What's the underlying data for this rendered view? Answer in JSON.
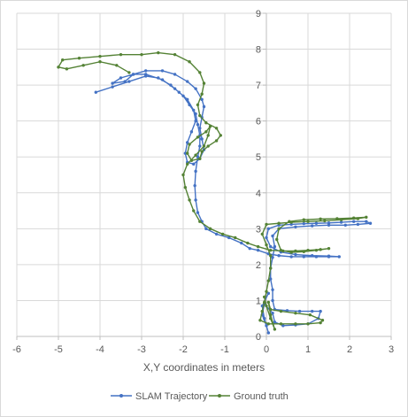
{
  "chart_data": {
    "type": "scatter",
    "title": "",
    "xlabel": "X,Y coordinates in meters",
    "ylabel": "",
    "xlim": [
      -6,
      3
    ],
    "ylim": [
      0,
      9
    ],
    "x_ticks": [
      -6,
      -5,
      -4,
      -3,
      -2,
      -1,
      0,
      1,
      2,
      3
    ],
    "y_ticks": [
      0,
      1,
      2,
      3,
      4,
      5,
      6,
      7,
      8,
      9
    ],
    "grid": true,
    "legend_position": "bottom",
    "series": [
      {
        "name": "SLAM Trajectory",
        "color": "#4472c4",
        "points": [
          [
            -4.1,
            6.8
          ],
          [
            -3.7,
            6.95
          ],
          [
            -3.3,
            7.1
          ],
          [
            -2.9,
            7.25
          ],
          [
            -2.6,
            7.2
          ],
          [
            -2.3,
            7.0
          ],
          [
            -2.1,
            6.8
          ],
          [
            -1.9,
            6.6
          ],
          [
            -1.75,
            6.3
          ],
          [
            -1.7,
            6.0
          ],
          [
            -1.8,
            5.7
          ],
          [
            -1.9,
            5.4
          ],
          [
            -1.95,
            5.1
          ],
          [
            -1.9,
            4.85
          ],
          [
            -1.75,
            4.8
          ],
          [
            -1.6,
            4.95
          ],
          [
            -1.5,
            5.2
          ],
          [
            -1.55,
            5.5
          ],
          [
            -1.6,
            5.8
          ],
          [
            -1.55,
            6.1
          ],
          [
            -1.5,
            6.4
          ],
          [
            -1.55,
            6.6
          ],
          [
            -1.7,
            6.9
          ],
          [
            -1.9,
            7.1
          ],
          [
            -2.2,
            7.3
          ],
          [
            -2.5,
            7.4
          ],
          [
            -2.9,
            7.4
          ],
          [
            -3.2,
            7.3
          ],
          [
            -3.4,
            7.1
          ],
          [
            -3.7,
            7.05
          ],
          [
            -3.5,
            7.2
          ],
          [
            -3.2,
            7.3
          ],
          [
            -2.9,
            7.3
          ],
          [
            -2.5,
            7.15
          ],
          [
            -2.2,
            6.9
          ],
          [
            -2.0,
            6.7
          ],
          [
            -1.85,
            6.45
          ],
          [
            -1.7,
            6.2
          ],
          [
            -1.65,
            5.9
          ],
          [
            -1.6,
            5.6
          ],
          [
            -1.6,
            5.3
          ],
          [
            -1.65,
            5.0
          ],
          [
            -1.7,
            4.6
          ],
          [
            -1.72,
            4.2
          ],
          [
            -1.7,
            3.8
          ],
          [
            -1.65,
            3.45
          ],
          [
            -1.55,
            3.2
          ],
          [
            -1.45,
            3.0
          ],
          [
            -1.2,
            2.85
          ],
          [
            -0.9,
            2.75
          ],
          [
            -0.6,
            2.6
          ],
          [
            -0.4,
            2.45
          ],
          [
            -0.2,
            2.4
          ],
          [
            0.05,
            2.3
          ],
          [
            0.3,
            2.25
          ],
          [
            0.6,
            2.22
          ],
          [
            0.9,
            2.22
          ],
          [
            1.2,
            2.22
          ],
          [
            1.5,
            2.22
          ],
          [
            1.75,
            2.22
          ],
          [
            1.5,
            2.24
          ],
          [
            1.1,
            2.25
          ],
          [
            0.7,
            2.28
          ],
          [
            0.35,
            2.35
          ],
          [
            0.1,
            2.5
          ],
          [
            0.0,
            2.75
          ],
          [
            0.05,
            3.0
          ],
          [
            0.3,
            3.1
          ],
          [
            0.6,
            3.12
          ],
          [
            0.9,
            3.14
          ],
          [
            1.2,
            3.15
          ],
          [
            1.5,
            3.16
          ],
          [
            1.8,
            3.18
          ],
          [
            2.1,
            3.2
          ],
          [
            2.4,
            3.2
          ],
          [
            2.5,
            3.15
          ],
          [
            2.2,
            3.12
          ],
          [
            1.9,
            3.1
          ],
          [
            1.5,
            3.1
          ],
          [
            1.1,
            3.08
          ],
          [
            0.7,
            3.05
          ],
          [
            0.3,
            3.0
          ],
          [
            0.15,
            2.8
          ],
          [
            0.2,
            2.5
          ],
          [
            0.15,
            2.2
          ],
          [
            0.1,
            1.9
          ],
          [
            0.1,
            1.6
          ],
          [
            0.15,
            1.3
          ],
          [
            0.15,
            1.0
          ],
          [
            0.2,
            0.75
          ],
          [
            0.5,
            0.72
          ],
          [
            0.8,
            0.7
          ],
          [
            1.1,
            0.7
          ],
          [
            1.3,
            0.7
          ],
          [
            1.25,
            0.5
          ],
          [
            1.0,
            0.35
          ],
          [
            0.7,
            0.32
          ],
          [
            0.4,
            0.3
          ],
          [
            0.2,
            0.4
          ],
          [
            0.15,
            0.65
          ],
          [
            -0.05,
            0.9
          ],
          [
            -0.1,
            0.6
          ],
          [
            0.0,
            0.3
          ],
          [
            0.05,
            0.1
          ],
          [
            -0.05,
            0.5
          ],
          [
            -0.1,
            0.85
          ],
          [
            0.05,
            1.2
          ]
        ]
      },
      {
        "name": "Ground truth",
        "color": "#548235",
        "points": [
          [
            -3.3,
            7.35
          ],
          [
            -3.6,
            7.55
          ],
          [
            -4.0,
            7.65
          ],
          [
            -4.4,
            7.55
          ],
          [
            -4.8,
            7.45
          ],
          [
            -5.0,
            7.5
          ],
          [
            -4.9,
            7.7
          ],
          [
            -4.5,
            7.75
          ],
          [
            -4.0,
            7.8
          ],
          [
            -3.5,
            7.85
          ],
          [
            -3.0,
            7.85
          ],
          [
            -2.6,
            7.9
          ],
          [
            -2.2,
            7.85
          ],
          [
            -1.85,
            7.65
          ],
          [
            -1.6,
            7.35
          ],
          [
            -1.5,
            7.05
          ],
          [
            -1.55,
            6.75
          ],
          [
            -1.65,
            6.45
          ],
          [
            -1.6,
            6.15
          ],
          [
            -1.45,
            5.95
          ],
          [
            -1.2,
            5.8
          ],
          [
            -1.1,
            5.6
          ],
          [
            -1.2,
            5.45
          ],
          [
            -1.4,
            5.3
          ],
          [
            -1.55,
            5.15
          ],
          [
            -1.6,
            4.95
          ],
          [
            -1.8,
            4.9
          ],
          [
            -1.9,
            5.1
          ],
          [
            -1.85,
            5.35
          ],
          [
            -1.65,
            5.55
          ],
          [
            -1.45,
            5.7
          ],
          [
            -1.35,
            5.85
          ],
          [
            -1.4,
            5.6
          ],
          [
            -1.5,
            5.3
          ],
          [
            -1.7,
            5.05
          ],
          [
            -1.9,
            4.8
          ],
          [
            -2.0,
            4.5
          ],
          [
            -1.95,
            4.15
          ],
          [
            -1.85,
            3.8
          ],
          [
            -1.75,
            3.5
          ],
          [
            -1.6,
            3.2
          ],
          [
            -1.35,
            3.0
          ],
          [
            -1.05,
            2.85
          ],
          [
            -0.75,
            2.75
          ],
          [
            -0.45,
            2.6
          ],
          [
            -0.2,
            2.5
          ],
          [
            0.1,
            2.4
          ],
          [
            0.4,
            2.38
          ],
          [
            0.7,
            2.38
          ],
          [
            1.0,
            2.4
          ],
          [
            1.3,
            2.42
          ],
          [
            1.5,
            2.45
          ],
          [
            1.2,
            2.4
          ],
          [
            0.9,
            2.36
          ],
          [
            0.6,
            2.34
          ],
          [
            0.35,
            2.4
          ],
          [
            0.25,
            2.7
          ],
          [
            0.3,
            3.0
          ],
          [
            0.55,
            3.2
          ],
          [
            0.9,
            3.25
          ],
          [
            1.3,
            3.27
          ],
          [
            1.7,
            3.28
          ],
          [
            2.1,
            3.3
          ],
          [
            2.4,
            3.32
          ],
          [
            2.2,
            3.28
          ],
          [
            1.8,
            3.25
          ],
          [
            1.4,
            3.22
          ],
          [
            1.0,
            3.2
          ],
          [
            0.6,
            3.18
          ],
          [
            0.3,
            3.15
          ],
          [
            0.0,
            3.12
          ],
          [
            -0.1,
            2.85
          ],
          [
            0.0,
            2.55
          ],
          [
            0.1,
            2.25
          ],
          [
            0.1,
            1.9
          ],
          [
            0.05,
            1.55
          ],
          [
            0.0,
            1.25
          ],
          [
            -0.05,
            0.95
          ],
          [
            -0.1,
            0.7
          ],
          [
            -0.15,
            0.45
          ],
          [
            0.05,
            0.35
          ],
          [
            0.35,
            0.35
          ],
          [
            0.7,
            0.35
          ],
          [
            1.0,
            0.35
          ],
          [
            1.3,
            0.38
          ],
          [
            1.35,
            0.45
          ],
          [
            1.05,
            0.6
          ],
          [
            0.7,
            0.65
          ],
          [
            0.35,
            0.7
          ],
          [
            0.1,
            0.75
          ],
          [
            0.05,
            0.95
          ],
          [
            0.1,
            0.6
          ],
          [
            0.2,
            0.2
          ],
          [
            0.1,
            0.5
          ],
          [
            0.0,
            0.85
          ],
          [
            -0.05,
            1.1
          ]
        ]
      }
    ]
  }
}
